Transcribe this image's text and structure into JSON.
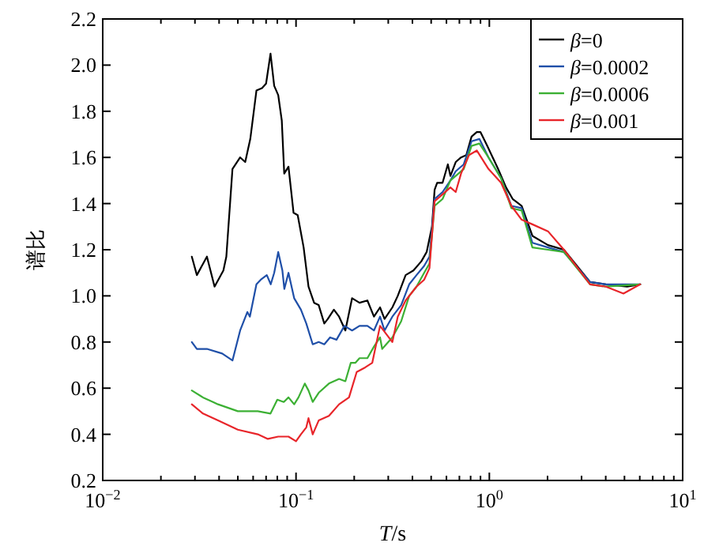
{
  "chart_data": {
    "type": "line",
    "xlabel": "T/s",
    "ylabel": "谱比",
    "log": "x",
    "xlim": [
      0.01,
      10
    ],
    "xticks": [
      {
        "value": 0.01,
        "label": "10$^{−2}$"
      },
      {
        "value": 0.1,
        "label": "10$^{−1}$"
      },
      {
        "value": 1,
        "label": "10$^{0}$"
      },
      {
        "value": 10,
        "label": "10$^{1}$"
      }
    ],
    "ylim": [
      0.2,
      2.2
    ],
    "yticks": [
      0.2,
      0.4,
      0.6,
      0.8,
      {
        "value": 1.0,
        "label": "1.0"
      },
      1.2,
      1.4,
      1.6,
      1.8,
      {
        "value": 2.0,
        "label": "2.0"
      },
      2.2
    ],
    "grid": false,
    "legend": "top right",
    "marker": "none",
    "line_style": "solid",
    "series": [
      {
        "name": "β=0",
        "color": "#000000",
        "x": [
          0.0289,
          0.0307,
          0.0346,
          0.0379,
          0.0421,
          0.0436,
          0.0469,
          0.0514,
          0.0546,
          0.058,
          0.0624,
          0.0667,
          0.07,
          0.0738,
          0.0771,
          0.0809,
          0.0844,
          0.0869,
          0.0914,
          0.0971,
          0.102,
          0.1095,
          0.116,
          0.124,
          0.131,
          0.14,
          0.146,
          0.157,
          0.167,
          0.18,
          0.195,
          0.213,
          0.234,
          0.253,
          0.272,
          0.287,
          0.315,
          0.336,
          0.369,
          0.405,
          0.445,
          0.474,
          0.505,
          0.521,
          0.537,
          0.573,
          0.61,
          0.629,
          0.67,
          0.714,
          0.76,
          0.809,
          0.861,
          0.899,
          0.975,
          1.11,
          1.22,
          1.32,
          1.47,
          1.67,
          2.01,
          2.43,
          3.32,
          4.01,
          5.16,
          6.03
        ],
        "values": [
          1.17,
          1.09,
          1.17,
          1.04,
          1.11,
          1.17,
          1.55,
          1.6,
          1.58,
          1.68,
          1.89,
          1.9,
          1.92,
          2.05,
          1.91,
          1.87,
          1.76,
          1.53,
          1.56,
          1.36,
          1.35,
          1.21,
          1.04,
          0.97,
          0.96,
          0.88,
          0.9,
          0.94,
          0.91,
          0.85,
          0.99,
          0.97,
          0.98,
          0.91,
          0.95,
          0.9,
          0.95,
          1.0,
          1.09,
          1.11,
          1.15,
          1.19,
          1.3,
          1.46,
          1.49,
          1.49,
          1.57,
          1.52,
          1.58,
          1.6,
          1.61,
          1.69,
          1.71,
          1.71,
          1.65,
          1.55,
          1.47,
          1.42,
          1.39,
          1.26,
          1.22,
          1.2,
          1.06,
          1.05,
          1.04,
          1.05
        ]
      },
      {
        "name": "β=0.0002",
        "color": "#1f4fa8",
        "x": [
          0.0289,
          0.0307,
          0.0346,
          0.0415,
          0.0469,
          0.0514,
          0.056,
          0.0577,
          0.0624,
          0.0657,
          0.0706,
          0.074,
          0.0771,
          0.0809,
          0.085,
          0.087,
          0.0914,
          0.0978,
          0.106,
          0.113,
          0.122,
          0.131,
          0.14,
          0.15,
          0.162,
          0.178,
          0.195,
          0.213,
          0.234,
          0.253,
          0.272,
          0.287,
          0.315,
          0.35,
          0.385,
          0.42,
          0.46,
          0.49,
          0.521,
          0.573,
          0.629,
          0.67,
          0.737,
          0.809,
          0.888,
          0.99,
          1.15,
          1.3,
          1.47,
          1.67,
          2.01,
          2.43,
          3.32,
          4.01,
          6.03
        ],
        "values": [
          0.8,
          0.77,
          0.77,
          0.75,
          0.72,
          0.85,
          0.93,
          0.91,
          1.05,
          1.07,
          1.09,
          1.05,
          1.1,
          1.19,
          1.11,
          1.03,
          1.1,
          0.99,
          0.94,
          0.88,
          0.79,
          0.8,
          0.79,
          0.82,
          0.81,
          0.87,
          0.85,
          0.87,
          0.87,
          0.85,
          0.91,
          0.85,
          0.91,
          0.96,
          1.05,
          1.09,
          1.13,
          1.17,
          1.42,
          1.45,
          1.5,
          1.54,
          1.57,
          1.67,
          1.68,
          1.6,
          1.51,
          1.39,
          1.38,
          1.23,
          1.21,
          1.19,
          1.06,
          1.05,
          1.05
        ]
      },
      {
        "name": "β=0.0006",
        "color": "#3cb034",
        "x": [
          0.0289,
          0.033,
          0.0395,
          0.05,
          0.0634,
          0.0738,
          0.08,
          0.0864,
          0.0914,
          0.0978,
          0.103,
          0.111,
          0.116,
          0.122,
          0.131,
          0.148,
          0.167,
          0.18,
          0.192,
          0.203,
          0.213,
          0.234,
          0.253,
          0.272,
          0.279,
          0.315,
          0.35,
          0.385,
          0.42,
          0.46,
          0.49,
          0.521,
          0.573,
          0.629,
          0.67,
          0.737,
          0.809,
          0.888,
          0.99,
          1.15,
          1.3,
          1.47,
          1.67,
          2.01,
          2.43,
          3.32,
          4.01,
          6.03
        ],
        "values": [
          0.59,
          0.56,
          0.53,
          0.5,
          0.5,
          0.49,
          0.55,
          0.54,
          0.56,
          0.53,
          0.56,
          0.62,
          0.59,
          0.54,
          0.58,
          0.62,
          0.64,
          0.63,
          0.71,
          0.71,
          0.73,
          0.73,
          0.78,
          0.82,
          0.77,
          0.82,
          0.89,
          1.0,
          1.04,
          1.1,
          1.14,
          1.39,
          1.42,
          1.5,
          1.52,
          1.55,
          1.65,
          1.66,
          1.6,
          1.51,
          1.38,
          1.37,
          1.21,
          1.2,
          1.19,
          1.05,
          1.04,
          1.05
        ]
      },
      {
        "name": "β=0.001",
        "color": "#e8252a",
        "x": [
          0.0289,
          0.033,
          0.0395,
          0.05,
          0.0634,
          0.0715,
          0.0809,
          0.0914,
          0.1,
          0.106,
          0.113,
          0.116,
          0.122,
          0.131,
          0.148,
          0.167,
          0.188,
          0.206,
          0.228,
          0.248,
          0.272,
          0.315,
          0.336,
          0.369,
          0.42,
          0.46,
          0.49,
          0.521,
          0.573,
          0.629,
          0.67,
          0.714,
          0.785,
          0.861,
          0.99,
          1.15,
          1.3,
          1.47,
          1.67,
          2.01,
          2.43,
          3.32,
          4.01,
          4.94,
          6.03
        ],
        "values": [
          0.53,
          0.49,
          0.46,
          0.42,
          0.4,
          0.38,
          0.39,
          0.39,
          0.37,
          0.4,
          0.43,
          0.47,
          0.4,
          0.46,
          0.48,
          0.53,
          0.56,
          0.67,
          0.69,
          0.71,
          0.87,
          0.8,
          0.91,
          0.98,
          1.04,
          1.07,
          1.12,
          1.41,
          1.44,
          1.47,
          1.45,
          1.53,
          1.61,
          1.63,
          1.55,
          1.49,
          1.39,
          1.33,
          1.31,
          1.28,
          1.2,
          1.05,
          1.04,
          1.01,
          1.05
        ]
      }
    ]
  }
}
